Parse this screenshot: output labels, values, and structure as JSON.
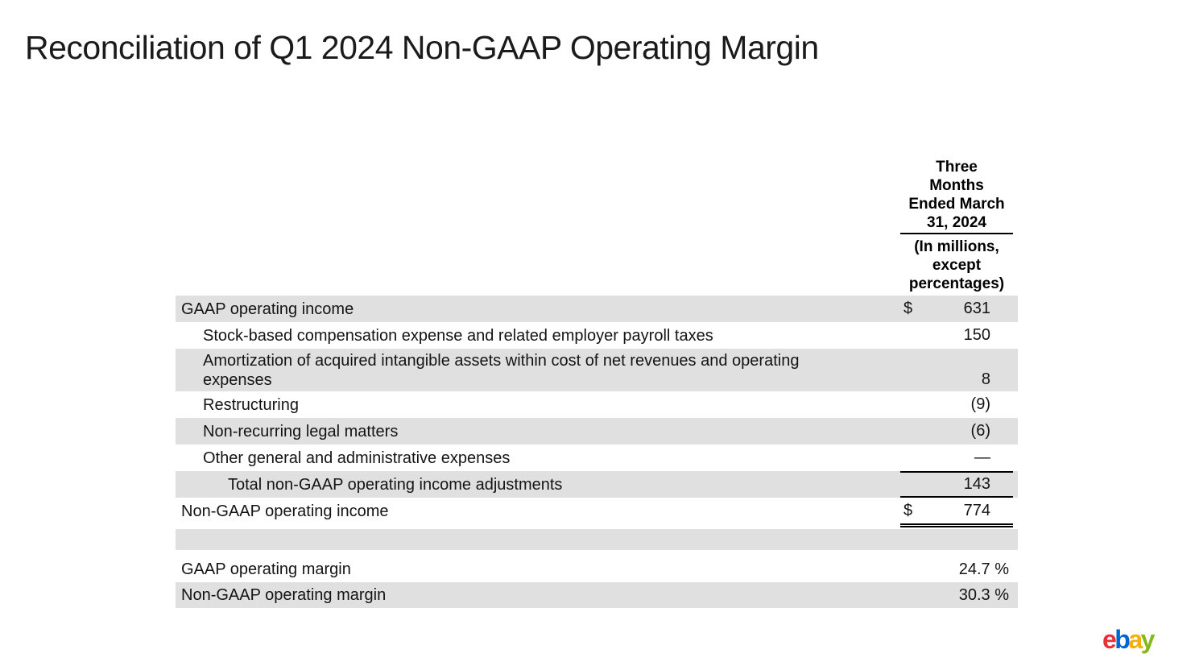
{
  "title": "Reconciliation of Q1 2024 Non-GAAP Operating Margin",
  "table": {
    "header": {
      "period": "Three\nMonths\nEnded March\n31, 2024",
      "units": "(In millions,\nexcept\npercentages)"
    },
    "rows": [
      {
        "label": "GAAP operating income",
        "prefix": "$",
        "value": "631"
      },
      {
        "label": "Stock-based compensation expense and related employer payroll taxes",
        "prefix": "",
        "value": "150"
      },
      {
        "label": "Amortization of acquired intangible assets within cost of net revenues and operating expenses",
        "prefix": "",
        "value": "8"
      },
      {
        "label": "Restructuring",
        "prefix": "",
        "value": "(9)"
      },
      {
        "label": "Non-recurring legal matters",
        "prefix": "",
        "value": "(6)"
      },
      {
        "label": "Other general and administrative expenses",
        "prefix": "",
        "value": "—"
      },
      {
        "label": "Total non-GAAP operating income adjustments",
        "prefix": "",
        "value": "143"
      },
      {
        "label": "Non-GAAP operating income",
        "prefix": "$",
        "value": "774"
      },
      {
        "label": "",
        "prefix": "",
        "value": ""
      },
      {
        "label": "GAAP operating margin",
        "prefix": "",
        "value": "24.7 %"
      },
      {
        "label": "Non-GAAP operating margin",
        "prefix": "",
        "value": "30.3 %"
      }
    ]
  },
  "logo": {
    "letters": [
      {
        "char": "e",
        "color": "#e53238"
      },
      {
        "char": "b",
        "color": "#0064d2"
      },
      {
        "char": "a",
        "color": "#f5af02"
      },
      {
        "char": "y",
        "color": "#86b817"
      }
    ]
  },
  "colors": {
    "row_shading": "#e0e0e0",
    "text": "#141414",
    "rule_lines": "#000000",
    "background": "#ffffff"
  }
}
